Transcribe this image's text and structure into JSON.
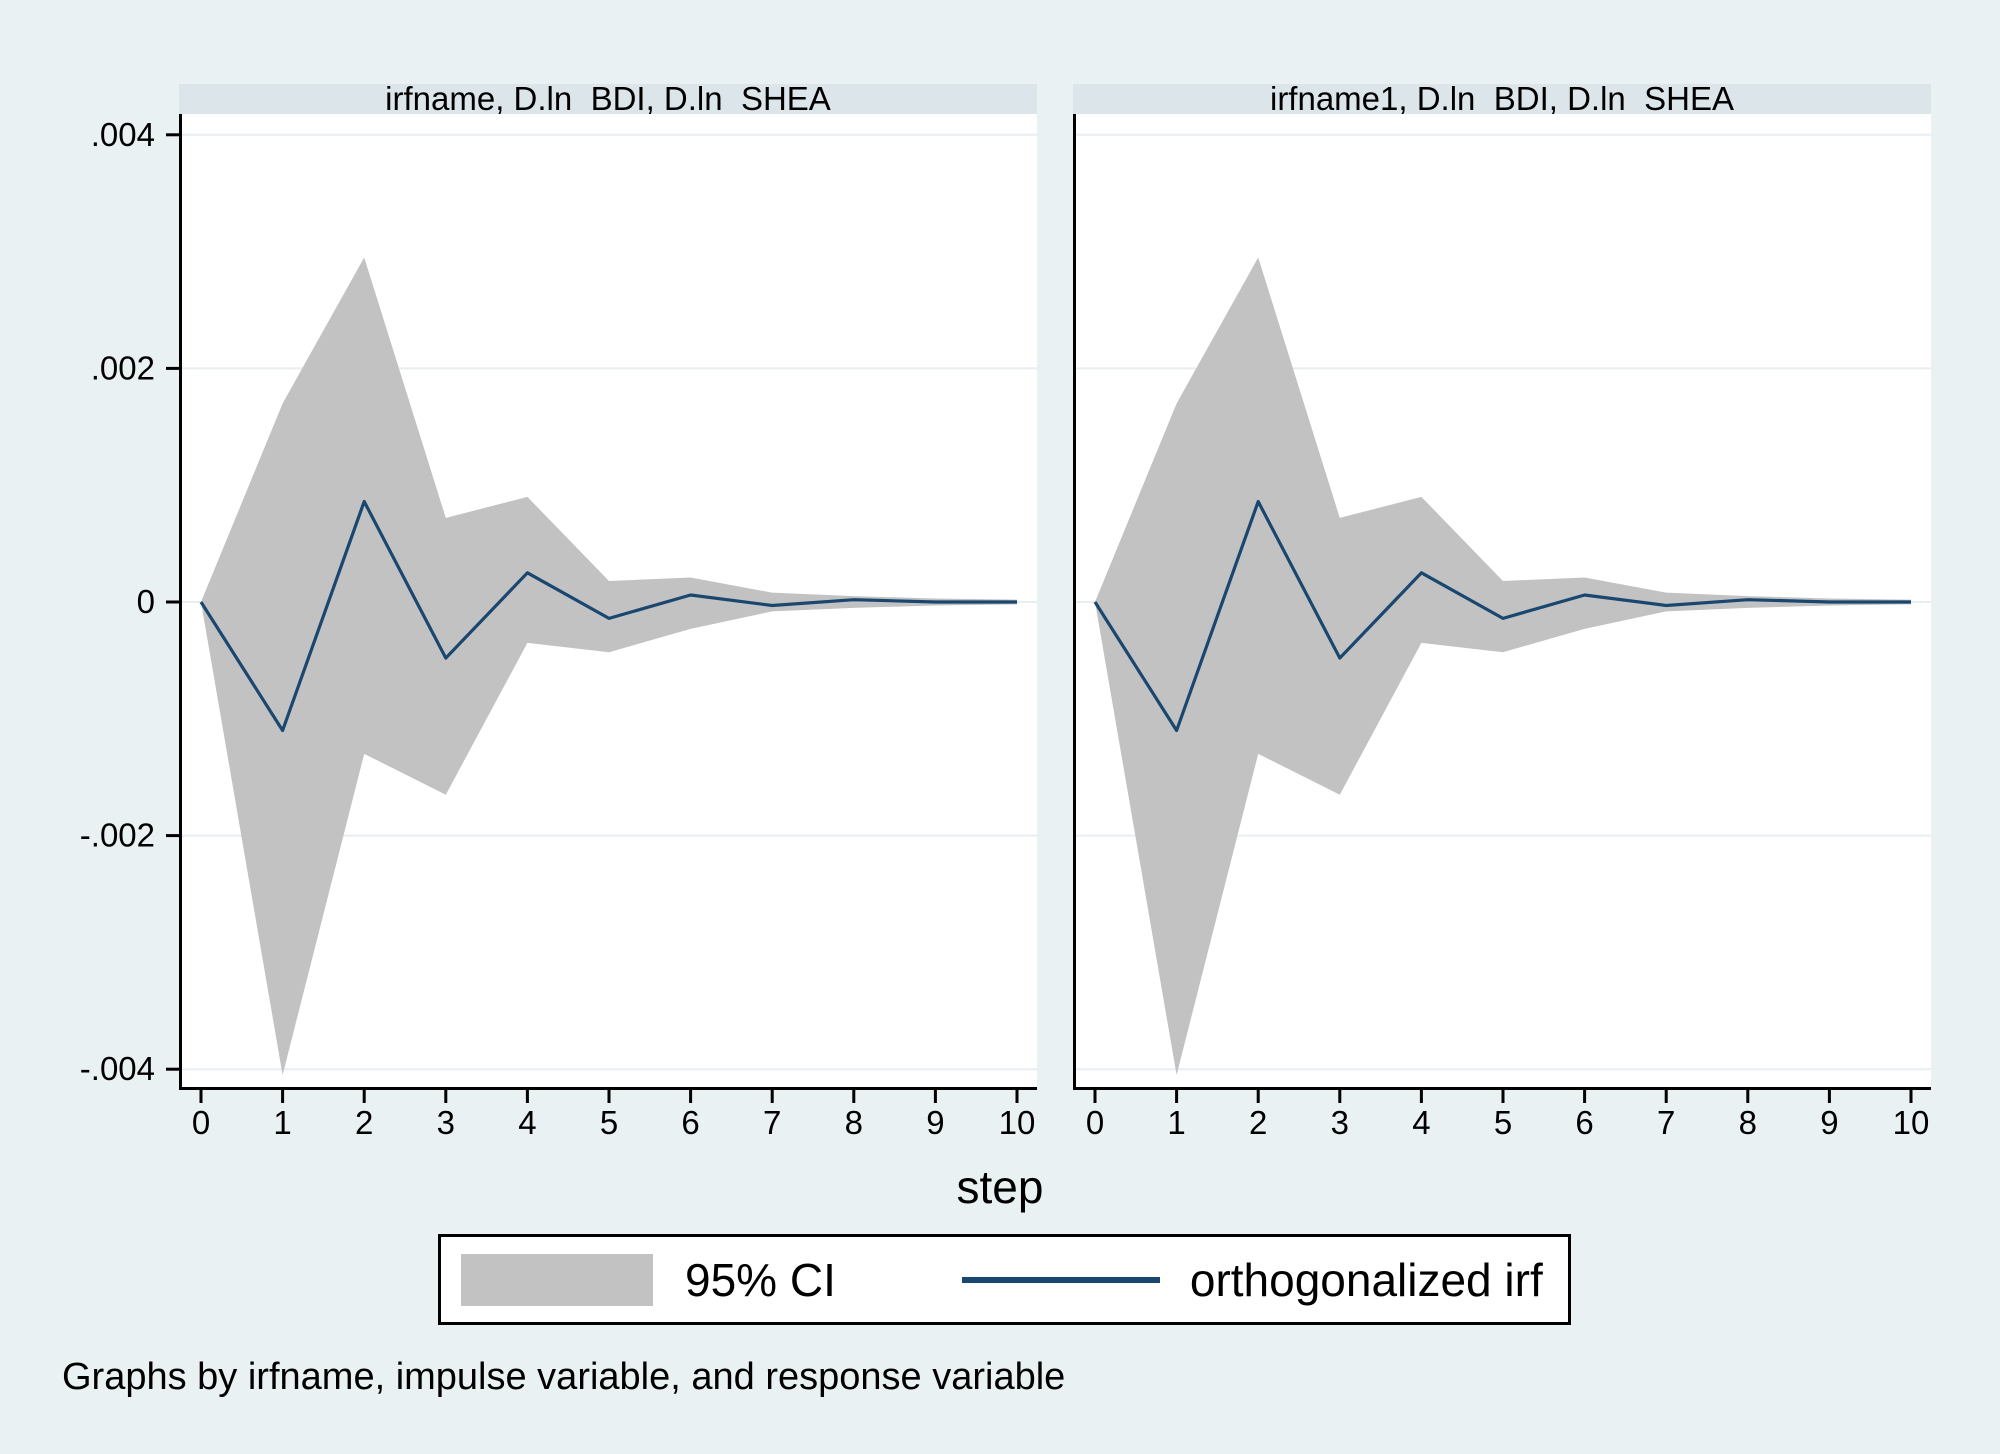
{
  "figure": {
    "background": "#eaf1f3",
    "header_color": "#dce6ea",
    "grid_color": "#e8eef0",
    "xaxis_title": "step",
    "caption": "Graphs by irfname, impulse variable, and response variable"
  },
  "legend": {
    "ci_label": "95% CI",
    "irf_label": "orthogonalized irf",
    "ci_color": "#c2c2c2",
    "line_color": "#1a476f"
  },
  "chart_data": [
    {
      "type": "area",
      "title": "irfname, D.ln_BDI, D.ln_SHEA",
      "xlabel": "step",
      "ylabel": "",
      "x": [
        0,
        1,
        2,
        3,
        4,
        5,
        6,
        7,
        8,
        9,
        10
      ],
      "series": [
        {
          "name": "95% CI upper",
          "values": [
            0,
            0.0017,
            0.00295,
            0.00072,
            0.0009,
            0.00018,
            0.00021,
            8e-05,
            5e-05,
            3e-05,
            2e-05
          ]
        },
        {
          "name": "95% CI lower",
          "values": [
            0,
            -0.00405,
            -0.0013,
            -0.00165,
            -0.00035,
            -0.00043,
            -0.00023,
            -8e-05,
            -5e-05,
            -3e-05,
            -2e-05
          ]
        },
        {
          "name": "orthogonalized irf",
          "values": [
            0,
            -0.0011,
            0.00086,
            -0.00048,
            0.00025,
            -0.00014,
            6e-05,
            -3e-05,
            2e-05,
            0,
            0
          ]
        }
      ],
      "x_tick_labels": [
        "0",
        "1",
        "2",
        "3",
        "4",
        "5",
        "6",
        "7",
        "8",
        "9",
        "10"
      ],
      "x_tick_values": [
        0,
        1,
        2,
        3,
        4,
        5,
        6,
        7,
        8,
        9,
        10
      ],
      "y_tick_labels": [
        ".004",
        ".002",
        "0",
        "-.002",
        "-.004"
      ],
      "y_tick_values": [
        0.004,
        0.002,
        0,
        -0.002,
        -0.004
      ],
      "ylim": [
        -0.00418,
        0.00418
      ],
      "grid": true,
      "y_labels_shown": true
    },
    {
      "type": "area",
      "title": "irfname1, D.ln_BDI, D.ln_SHEA",
      "xlabel": "step",
      "ylabel": "",
      "x": [
        0,
        1,
        2,
        3,
        4,
        5,
        6,
        7,
        8,
        9,
        10
      ],
      "series": [
        {
          "name": "95% CI upper",
          "values": [
            0,
            0.0017,
            0.00295,
            0.00072,
            0.0009,
            0.00018,
            0.00021,
            8e-05,
            5e-05,
            3e-05,
            2e-05
          ]
        },
        {
          "name": "95% CI lower",
          "values": [
            0,
            -0.00405,
            -0.0013,
            -0.00165,
            -0.00035,
            -0.00043,
            -0.00023,
            -8e-05,
            -5e-05,
            -3e-05,
            -2e-05
          ]
        },
        {
          "name": "orthogonalized irf",
          "values": [
            0,
            -0.0011,
            0.00086,
            -0.00048,
            0.00025,
            -0.00014,
            6e-05,
            -3e-05,
            2e-05,
            0,
            0
          ]
        }
      ],
      "x_tick_labels": [
        "0",
        "1",
        "2",
        "3",
        "4",
        "5",
        "6",
        "7",
        "8",
        "9",
        "10"
      ],
      "x_tick_values": [
        0,
        1,
        2,
        3,
        4,
        5,
        6,
        7,
        8,
        9,
        10
      ],
      "y_tick_labels": [
        ".004",
        ".002",
        "0",
        "-.002",
        "-.004"
      ],
      "y_tick_values": [
        0.004,
        0.002,
        0,
        -0.002,
        -0.004
      ],
      "ylim": [
        -0.00418,
        0.00418
      ],
      "grid": true,
      "y_labels_shown": false
    }
  ]
}
